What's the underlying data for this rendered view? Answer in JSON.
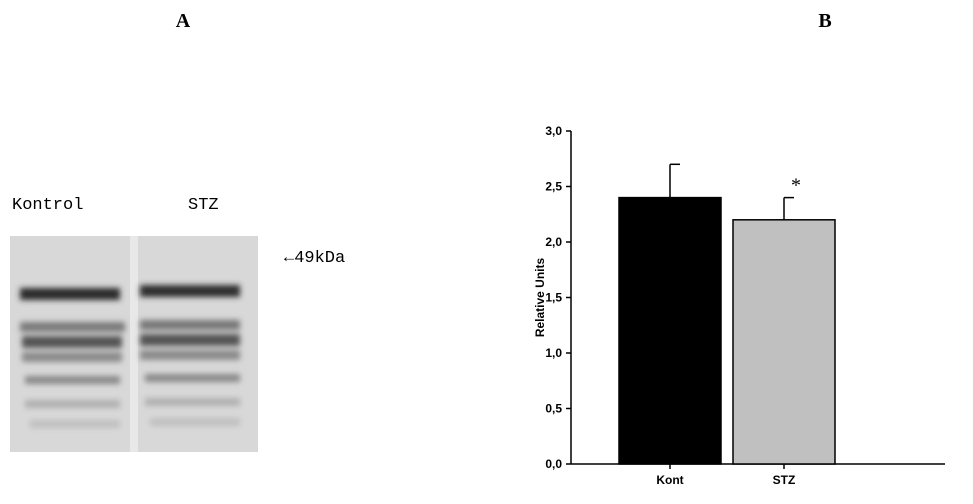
{
  "panels": {
    "left": "A",
    "right": "B"
  },
  "blot": {
    "lanes": [
      "Kontrol",
      "STZ"
    ],
    "marker": "←49kDa"
  },
  "chart_data": {
    "type": "bar",
    "categories": [
      "Kont",
      "STZ"
    ],
    "values": [
      2.4,
      2.2
    ],
    "errors": [
      0.3,
      0.2
    ],
    "colors": [
      "#000000",
      "#c0c0c0"
    ],
    "ylabel": "Relative Units",
    "annotation": "*",
    "ylim": [
      0,
      3
    ],
    "yticks": [
      {
        "value": 0,
        "label": "0,0"
      },
      {
        "value": 0.5,
        "label": "0,5"
      },
      {
        "value": 1,
        "label": "1,0"
      },
      {
        "value": 1.5,
        "label": "1,5"
      },
      {
        "value": 2,
        "label": "2,0"
      },
      {
        "value": 2.5,
        "label": "2,5"
      },
      {
        "value": 3,
        "label": "3,0"
      }
    ]
  }
}
